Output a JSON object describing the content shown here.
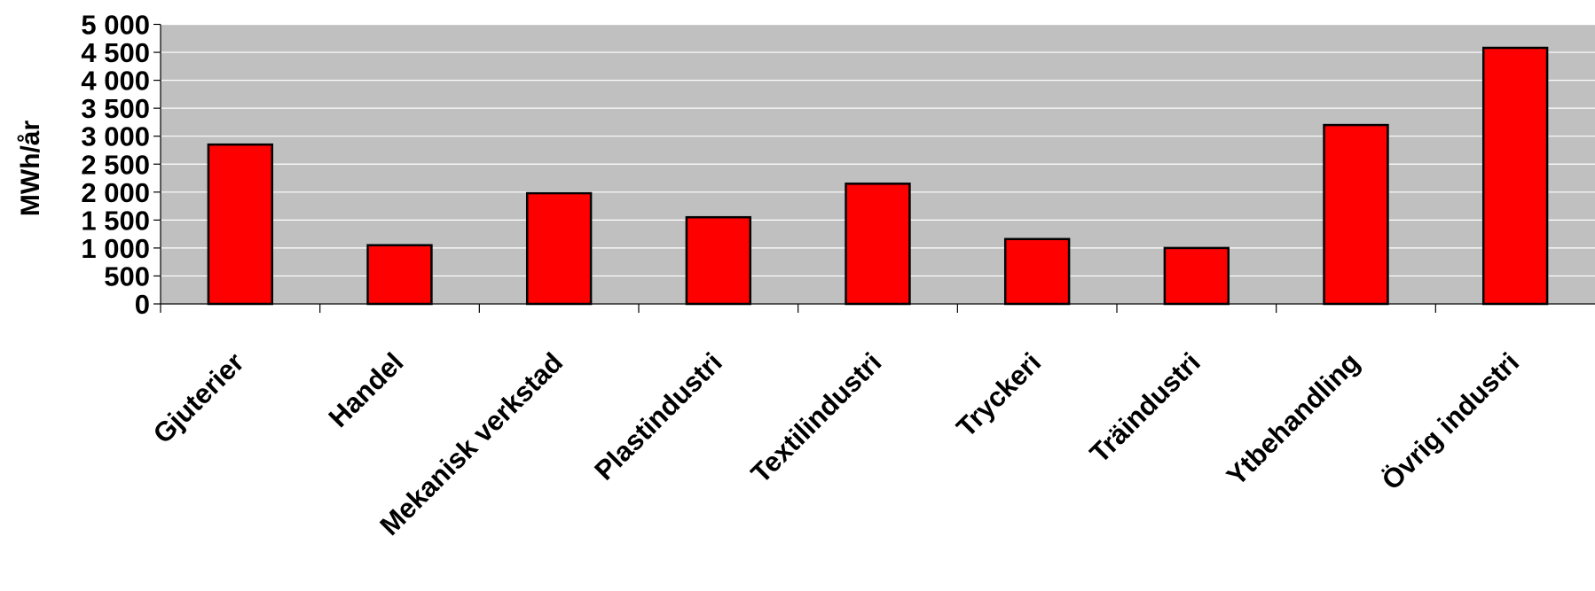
{
  "chart_data": {
    "type": "bar",
    "y_label": "MWh/år",
    "categories": [
      "Gjuterier",
      "Handel",
      "Mekanisk verkstad",
      "Plastindustri",
      "Textilindustri",
      "Tryckeri",
      "Träindustri",
      "Ytbehandling",
      "Övrig industri"
    ],
    "values": [
      2850,
      1050,
      1980,
      1550,
      2150,
      1160,
      1000,
      3200,
      4580
    ],
    "color": "#ff0000",
    "ylim": [
      0,
      5000
    ],
    "yticks": [
      0,
      500,
      {
        "value": 1000,
        "label": "1 000"
      },
      {
        "value": 1500,
        "label": "1 500"
      },
      {
        "value": 2000,
        "label": "2 000"
      },
      {
        "value": 2500,
        "label": "2 500"
      },
      {
        "value": 3000,
        "label": "3 000"
      },
      {
        "value": 3500,
        "label": "3 500"
      },
      {
        "value": 4000,
        "label": "4 000"
      },
      {
        "value": 4500,
        "label": "4 500"
      },
      {
        "value": 5000,
        "label": "5 000"
      }
    ],
    "grid": true
  }
}
